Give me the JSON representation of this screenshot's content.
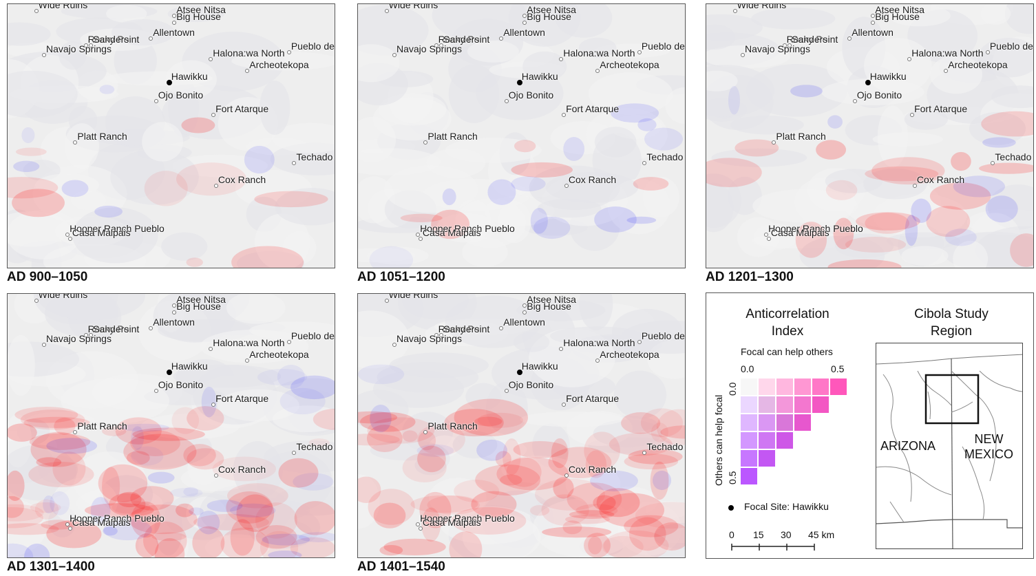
{
  "focal_site": "Hawikku",
  "sites": [
    {
      "name": "Wide Ruins",
      "lat": 35.24,
      "lon": -109.55
    },
    {
      "name": "Atsee Nitsa",
      "lat": 35.22,
      "lon": -109.02
    },
    {
      "name": "Big House",
      "lat": 35.19,
      "lon": -109.02
    },
    {
      "name": "Rocky Point",
      "lat": 35.09,
      "lon": -109.36
    },
    {
      "name": "Sanders",
      "lat": 35.09,
      "lon": -109.34
    },
    {
      "name": "Allentown",
      "lat": 35.12,
      "lon": -109.11
    },
    {
      "name": "Pueblo de los Muertos",
      "lat": 35.06,
      "lon": -108.58
    },
    {
      "name": "Halona:wa North",
      "lat": 35.03,
      "lon": -108.88
    },
    {
      "name": "Navajo Springs",
      "lat": 35.05,
      "lon": -109.52
    },
    {
      "name": "Archeotekopa",
      "lat": 34.98,
      "lon": -108.74
    },
    {
      "name": "Hawikku",
      "lat": 34.93,
      "lon": -109.04
    },
    {
      "name": "Ojo Bonito",
      "lat": 34.85,
      "lon": -109.09
    },
    {
      "name": "Fort Atarque",
      "lat": 34.79,
      "lon": -108.87
    },
    {
      "name": "Platt Ranch",
      "lat": 34.67,
      "lon": -109.4
    },
    {
      "name": "Techado Spring",
      "lat": 34.58,
      "lon": -108.56
    },
    {
      "name": "Cox Ranch",
      "lat": 34.48,
      "lon": -108.86
    },
    {
      "name": "Hooper Ranch Pueblo",
      "lat": 34.27,
      "lon": -109.43
    },
    {
      "name": "Casa Malpais",
      "lat": 34.25,
      "lon": -109.42
    }
  ],
  "periods": [
    {
      "label": "AD 900–1050",
      "red_level": 0.1,
      "blue_level": 0.1
    },
    {
      "label": "AD 1051–1200",
      "red_level": 0.05,
      "blue_level": 0.2
    },
    {
      "label": "AD 1201–1300",
      "red_level": 0.2,
      "blue_level": 0.15
    },
    {
      "label": "AD 1301–1400",
      "red_level": 0.65,
      "blue_level": 0.45
    },
    {
      "label": "AD 1401–1540",
      "red_level": 0.75,
      "blue_level": 0.1
    }
  ],
  "legend": {
    "title_line1": "Anticorrelation",
    "title_line2": "Index",
    "x_axis_label": "Focal can help others",
    "y_axis_label": "Others can help focal",
    "x_min": "0.0",
    "x_max": "0.5",
    "y_min": "0.0",
    "y_max": "0.5",
    "focal_label": "Focal Site: Hawikku",
    "scale_ticks": [
      "0",
      "15",
      "30",
      "45 km"
    ]
  },
  "inset": {
    "title_line1": "Cibola Study",
    "title_line2": "Region",
    "state_left": "ARIZONA",
    "state_right_line1": "NEW",
    "state_right_line2": "MEXICO"
  },
  "colors": {
    "red": "#ff0000",
    "blue": "#0000ff",
    "neutral": "#f7f7f7",
    "frame": "#555555"
  }
}
